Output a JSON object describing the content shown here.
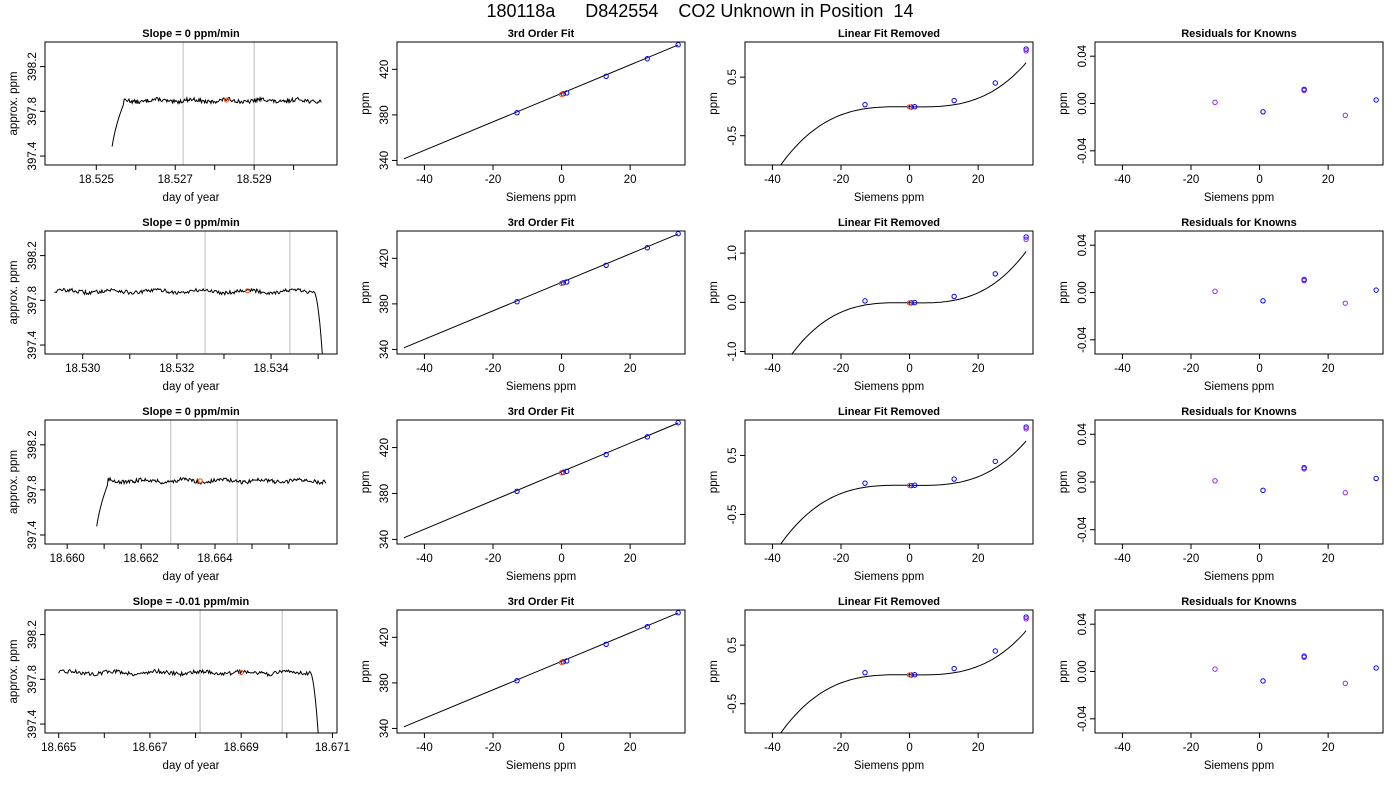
{
  "suptitle": "180118a      D842554    CO2 Unknown in Position  14",
  "colors": {
    "curve": "#000000",
    "vline": "#c8c8c8",
    "known_point": "#0000ff",
    "residual_point": "#a020f0",
    "unknown_point": "#ff4500",
    "axis": "#000000"
  },
  "chart_data": [
    {
      "panel": "row1-time-series",
      "type": "line",
      "title": "Slope =  0  ppm/min",
      "xlabel": "day of year",
      "ylabel": "approx. ppm",
      "xlim": [
        18.5237,
        18.5311
      ],
      "ylim": [
        397.32,
        398.42
      ],
      "xticks": [
        18.525,
        18.527,
        18.529
      ],
      "xtick_labels": [
        "18.525",
        "18.527",
        "18.529"
      ],
      "xminor": [
        18.526,
        18.528,
        18.53
      ],
      "yticks": [
        397.4,
        397.8,
        398.2
      ],
      "ytick_labels": [
        "397.4",
        "397.8",
        "398.2"
      ],
      "vlines": [
        18.5272,
        18.529
      ],
      "marker": {
        "x": 18.5283,
        "y": 397.9
      },
      "trace": {
        "x_start": 18.5254,
        "x_end": 18.5307,
        "dip": "start",
        "level": 397.895,
        "base": 397.9,
        "step_at": 18.5257,
        "dip_min": 397.25,
        "dip_from": 18.52535
      }
    },
    {
      "panel": "row2-time-series",
      "type": "line",
      "title": "Slope =  0  ppm/min",
      "xlabel": "day of year",
      "ylabel": "approx. ppm",
      "xlim": [
        18.5292,
        18.5354
      ],
      "ylim": [
        397.32,
        398.42
      ],
      "xticks": [
        18.53,
        18.532,
        18.534
      ],
      "xtick_labels": [
        "18.530",
        "18.532",
        "18.534"
      ],
      "xminor": [
        18.531,
        18.533,
        18.535
      ],
      "yticks": [
        397.4,
        397.8,
        398.2
      ],
      "ytick_labels": [
        "397.4",
        "397.8",
        "398.2"
      ],
      "vlines": [
        18.5326,
        18.5344
      ],
      "marker": {
        "x": 18.5335,
        "y": 397.885
      },
      "trace": {
        "x_start": 18.5294,
        "x_end": 18.5351,
        "dip": "end",
        "level": 397.88,
        "base": 397.88,
        "step_at": 18.5349,
        "dip_min": 397.25,
        "dip_from": 18.5351
      }
    },
    {
      "panel": "row3-time-series",
      "type": "line",
      "title": "Slope =  0  ppm/min",
      "xlabel": "day of year",
      "ylabel": "approx. ppm",
      "xlim": [
        18.6594,
        18.6673
      ],
      "ylim": [
        397.32,
        398.42
      ],
      "xticks": [
        18.66,
        18.662,
        18.664
      ],
      "xtick_labels": [
        "18.660",
        "18.662",
        "18.664"
      ],
      "xminor": [
        18.661,
        18.663,
        18.665,
        18.666
      ],
      "yticks": [
        397.4,
        397.8,
        398.2
      ],
      "ytick_labels": [
        "397.4",
        "397.8",
        "398.2"
      ],
      "vlines": [
        18.6628,
        18.6646
      ],
      "marker": {
        "x": 18.6636,
        "y": 397.88
      },
      "trace": {
        "x_start": 18.6608,
        "x_end": 18.667,
        "dip": "start",
        "level": 397.88,
        "base": 397.88,
        "step_at": 18.6611,
        "dip_min": 397.25,
        "dip_from": 18.66075
      }
    },
    {
      "panel": "row4-time-series",
      "type": "line",
      "title": "Slope =  -0.01  ppm/min",
      "xlabel": "day of year",
      "ylabel": "approx. ppm",
      "xlim": [
        18.6647,
        18.6711
      ],
      "ylim": [
        397.32,
        398.42
      ],
      "xticks": [
        18.665,
        18.667,
        18.669,
        18.671
      ],
      "xtick_labels": [
        "18.665",
        "18.667",
        "18.669",
        "18.671"
      ],
      "xminor": [
        18.666,
        18.668,
        18.67
      ],
      "yticks": [
        397.4,
        397.8,
        398.2
      ],
      "ytick_labels": [
        "397.4",
        "397.8",
        "398.2"
      ],
      "vlines": [
        18.6681,
        18.6699
      ],
      "marker": {
        "x": 18.669,
        "y": 397.86
      },
      "trace": {
        "x_start": 18.665,
        "x_end": 18.6707,
        "dip": "end",
        "level": 397.86,
        "base": 397.87,
        "step_at": 18.6705,
        "dip_min": 397.25,
        "dip_from": 18.6707
      }
    },
    {
      "panel": "row1-3rd-order-fit",
      "type": "scatter",
      "title": "3rd Order Fit",
      "xlabel": "Siemens ppm",
      "ylabel": "ppm",
      "xlim": [
        -48,
        36
      ],
      "ylim": [
        336,
        444
      ],
      "xticks": [
        -40,
        -20,
        0,
        20
      ],
      "xtick_labels": [
        "-40",
        "-20",
        "0",
        "20"
      ],
      "yticks": [
        340,
        380,
        420
      ],
      "ytick_labels": [
        "340",
        "380",
        "420"
      ],
      "line": {
        "x": [
          -46,
          34
        ],
        "y": [
          341.4,
          441.4
        ]
      },
      "known_points": [
        [
          -13,
          381.9
        ],
        [
          0.5,
          398.5
        ],
        [
          1.5,
          399.3
        ],
        [
          13,
          413.9
        ],
        [
          25,
          429.3
        ],
        [
          34,
          441.6
        ]
      ],
      "unknown_point": [
        0,
        398.0
      ]
    },
    {
      "panel": "row2-3rd-order-fit",
      "type": "scatter",
      "title": "3rd Order Fit",
      "xlabel": "Siemens ppm",
      "ylabel": "ppm",
      "xlim": [
        -48,
        36
      ],
      "ylim": [
        336,
        444
      ],
      "xticks": [
        -40,
        -20,
        0,
        20
      ],
      "xtick_labels": [
        "-40",
        "-20",
        "0",
        "20"
      ],
      "yticks": [
        340,
        380,
        420
      ],
      "ytick_labels": [
        "340",
        "380",
        "420"
      ],
      "line": {
        "x": [
          -46,
          34
        ],
        "y": [
          341.4,
          441.4
        ]
      },
      "known_points": [
        [
          -13,
          381.9
        ],
        [
          0.5,
          398.5
        ],
        [
          1.5,
          399.3
        ],
        [
          13,
          413.9
        ],
        [
          25,
          429.3
        ],
        [
          34,
          441.6
        ]
      ],
      "unknown_point": [
        0,
        398.0
      ]
    },
    {
      "panel": "row3-3rd-order-fit",
      "type": "scatter",
      "title": "3rd Order Fit",
      "xlabel": "Siemens ppm",
      "ylabel": "ppm",
      "xlim": [
        -48,
        36
      ],
      "ylim": [
        336,
        444
      ],
      "xticks": [
        -40,
        -20,
        0,
        20
      ],
      "xtick_labels": [
        "-40",
        "-20",
        "0",
        "20"
      ],
      "yticks": [
        340,
        380,
        420
      ],
      "ytick_labels": [
        "340",
        "380",
        "420"
      ],
      "line": {
        "x": [
          -46,
          34
        ],
        "y": [
          341.4,
          441.4
        ]
      },
      "known_points": [
        [
          -13,
          381.9
        ],
        [
          0.5,
          398.5
        ],
        [
          1.5,
          399.3
        ],
        [
          13,
          413.9
        ],
        [
          25,
          429.3
        ],
        [
          34,
          441.6
        ]
      ],
      "unknown_point": [
        0,
        398.0
      ]
    },
    {
      "panel": "row4-3rd-order-fit",
      "type": "scatter",
      "title": "3rd Order Fit",
      "xlabel": "Siemens ppm",
      "ylabel": "ppm",
      "xlim": [
        -48,
        36
      ],
      "ylim": [
        336,
        444
      ],
      "xticks": [
        -40,
        -20,
        0,
        20
      ],
      "xtick_labels": [
        "-40",
        "-20",
        "0",
        "20"
      ],
      "yticks": [
        340,
        380,
        420
      ],
      "ytick_labels": [
        "340",
        "380",
        "420"
      ],
      "line": {
        "x": [
          -46,
          34
        ],
        "y": [
          341.4,
          441.4
        ]
      },
      "known_points": [
        [
          -13,
          381.9
        ],
        [
          0.5,
          398.5
        ],
        [
          1.5,
          399.3
        ],
        [
          13,
          413.9
        ],
        [
          25,
          429.3
        ],
        [
          34,
          441.6
        ]
      ],
      "unknown_point": [
        0,
        398.0
      ]
    },
    {
      "panel": "row1-linear-fit-removed",
      "type": "scatter",
      "title": "Linear Fit Removed",
      "xlabel": "Siemens ppm",
      "ylabel": "ppm",
      "xlim": [
        -48,
        36
      ],
      "ylim": [
        -1.0,
        1.1
      ],
      "xticks": [
        -40,
        -20,
        0,
        20
      ],
      "xtick_labels": [
        "-40",
        "-20",
        "0",
        "20"
      ],
      "yticks": [
        -0.5,
        0.5
      ],
      "ytick_labels": [
        "-0.5",
        "0.5"
      ],
      "curve_coeffs": [
        1.942e-05,
        1e-05,
        -0.00064,
        -0.0068
      ],
      "curve_x": [
        -46,
        34
      ],
      "known_points": [
        [
          -13,
          0.03
        ],
        [
          0.5,
          -0.01
        ],
        [
          1.5,
          -0.005
        ],
        [
          13,
          0.1
        ],
        [
          25,
          0.4
        ],
        [
          34,
          0.98
        ],
        [
          34,
          0.95
        ]
      ],
      "unknown_point": [
        0,
        -0.008
      ]
    },
    {
      "panel": "row2-linear-fit-removed",
      "type": "scatter",
      "title": "Linear Fit Removed",
      "xlabel": "Siemens ppm",
      "ylabel": "ppm",
      "xlim": [
        -48,
        36
      ],
      "ylim": [
        -1.05,
        1.45
      ],
      "xticks": [
        -40,
        -20,
        0,
        20
      ],
      "xtick_labels": [
        "-40",
        "-20",
        "0",
        "20"
      ],
      "yticks": [
        -1.0,
        0.0,
        1.0
      ],
      "ytick_labels": [
        "-1.0",
        "0.0",
        "1.0"
      ],
      "curve_coeffs": [
        2.694e-05,
        1.42e-05,
        -0.00088,
        -0.0094
      ],
      "curve_x": [
        -46,
        34
      ],
      "known_points": [
        [
          -13,
          0.03
        ],
        [
          0.5,
          -0.01
        ],
        [
          1.5,
          -0.005
        ],
        [
          13,
          0.12
        ],
        [
          25,
          0.58
        ],
        [
          34,
          1.33
        ],
        [
          34,
          1.28
        ]
      ],
      "unknown_point": [
        0,
        -0.01
      ]
    },
    {
      "panel": "row3-linear-fit-removed",
      "type": "scatter",
      "title": "Linear Fit Removed",
      "xlabel": "Siemens ppm",
      "ylabel": "ppm",
      "xlim": [
        -48,
        36
      ],
      "ylim": [
        -1.0,
        1.1
      ],
      "xticks": [
        -40,
        -20,
        0,
        20
      ],
      "xtick_labels": [
        "-40",
        "-20",
        "0",
        "20"
      ],
      "yticks": [
        -0.5,
        0.5
      ],
      "ytick_labels": [
        "-0.5",
        "0.5"
      ],
      "curve_coeffs": [
        1.942e-05,
        1e-05,
        -0.00064,
        -0.0068
      ],
      "curve_x": [
        -46,
        34
      ],
      "known_points": [
        [
          -13,
          0.03
        ],
        [
          0.5,
          -0.01
        ],
        [
          1.5,
          -0.005
        ],
        [
          13,
          0.1
        ],
        [
          25,
          0.4
        ],
        [
          34,
          0.98
        ],
        [
          34,
          0.95
        ]
      ],
      "unknown_point": [
        0,
        -0.008
      ]
    },
    {
      "panel": "row4-linear-fit-removed",
      "type": "scatter",
      "title": "Linear Fit Removed",
      "xlabel": "Siemens ppm",
      "ylabel": "ppm",
      "xlim": [
        -48,
        36
      ],
      "ylim": [
        -1.0,
        1.1
      ],
      "xticks": [
        -40,
        -20,
        0,
        20
      ],
      "xtick_labels": [
        "-40",
        "-20",
        "0",
        "20"
      ],
      "yticks": [
        -0.5,
        0.5
      ],
      "ytick_labels": [
        "-0.5",
        "0.5"
      ],
      "curve_coeffs": [
        1.942e-05,
        1e-05,
        -0.00064,
        -0.0068
      ],
      "curve_x": [
        -46,
        34
      ],
      "known_points": [
        [
          -13,
          0.03
        ],
        [
          0.5,
          -0.01
        ],
        [
          1.5,
          -0.005
        ],
        [
          13,
          0.1
        ],
        [
          25,
          0.4
        ],
        [
          34,
          0.98
        ],
        [
          34,
          0.95
        ]
      ],
      "unknown_point": [
        0,
        -0.008
      ]
    },
    {
      "panel": "row1-residuals",
      "type": "scatter",
      "title": "Residuals for Knowns",
      "xlabel": "Siemens ppm",
      "ylabel": "ppm",
      "xlim": [
        -48,
        36
      ],
      "ylim": [
        -0.052,
        0.052
      ],
      "xticks": [
        -40,
        -20,
        0,
        20
      ],
      "xtick_labels": [
        "-40",
        "-20",
        "0",
        "20"
      ],
      "yticks": [
        -0.04,
        0.0,
        0.04
      ],
      "ytick_labels": [
        "-0.04",
        "0.00",
        "0.04"
      ],
      "residual_points": [
        [
          -13,
          0.001
        ],
        [
          1,
          -0.007
        ],
        [
          13,
          0.011
        ],
        [
          13,
          0.012
        ],
        [
          25,
          -0.01
        ],
        [
          34,
          0.003
        ]
      ]
    },
    {
      "panel": "row2-residuals",
      "type": "scatter",
      "title": "Residuals for Knowns",
      "xlabel": "Siemens ppm",
      "ylabel": "ppm",
      "xlim": [
        -48,
        36
      ],
      "ylim": [
        -0.052,
        0.052
      ],
      "xticks": [
        -40,
        -20,
        0,
        20
      ],
      "xtick_labels": [
        "-40",
        "-20",
        "0",
        "20"
      ],
      "yticks": [
        -0.04,
        0.0,
        0.04
      ],
      "ytick_labels": [
        "-0.04",
        "0.00",
        "0.04"
      ],
      "residual_points": [
        [
          -13,
          0.001
        ],
        [
          1,
          -0.007
        ],
        [
          13,
          0.01
        ],
        [
          13,
          0.011
        ],
        [
          25,
          -0.009
        ],
        [
          34,
          0.002
        ]
      ]
    },
    {
      "panel": "row3-residuals",
      "type": "scatter",
      "title": "Residuals for Knowns",
      "xlabel": "Siemens ppm",
      "ylabel": "ppm",
      "xlim": [
        -48,
        36
      ],
      "ylim": [
        -0.052,
        0.052
      ],
      "xticks": [
        -40,
        -20,
        0,
        20
      ],
      "xtick_labels": [
        "-40",
        "-20",
        "0",
        "20"
      ],
      "yticks": [
        -0.04,
        0.0,
        0.04
      ],
      "ytick_labels": [
        "-0.04",
        "0.00",
        "0.04"
      ],
      "residual_points": [
        [
          -13,
          0.001
        ],
        [
          1,
          -0.007
        ],
        [
          13,
          0.011
        ],
        [
          13,
          0.012
        ],
        [
          25,
          -0.009
        ],
        [
          34,
          0.003
        ]
      ]
    },
    {
      "panel": "row4-residuals",
      "type": "scatter",
      "title": "Residuals for Knowns",
      "xlabel": "Siemens ppm",
      "ylabel": "ppm",
      "xlim": [
        -48,
        36
      ],
      "ylim": [
        -0.052,
        0.052
      ],
      "xticks": [
        -40,
        -20,
        0,
        20
      ],
      "xtick_labels": [
        "-40",
        "-20",
        "0",
        "20"
      ],
      "yticks": [
        -0.04,
        0.0,
        0.04
      ],
      "ytick_labels": [
        "-0.04",
        "0.00",
        "0.04"
      ],
      "residual_points": [
        [
          -13,
          0.002
        ],
        [
          1,
          -0.008
        ],
        [
          13,
          0.012
        ],
        [
          13,
          0.013
        ],
        [
          25,
          -0.01
        ],
        [
          34,
          0.003
        ]
      ]
    }
  ]
}
